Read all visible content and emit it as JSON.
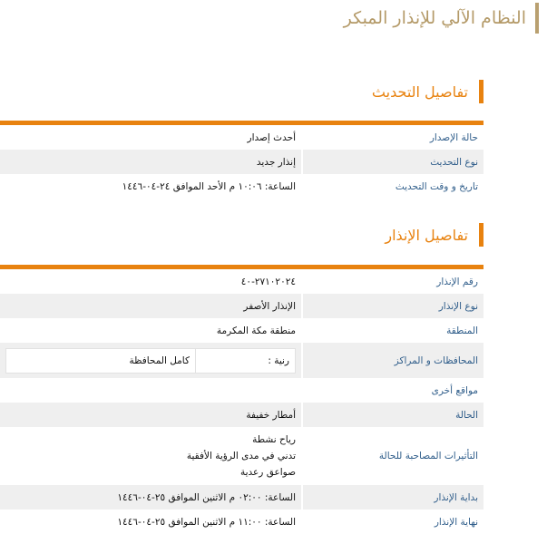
{
  "page_title": "النظام الآلي للإنذار المبكر",
  "update_section": {
    "heading": "تفاصيل التحديث",
    "rows": [
      {
        "label": "حالة الإصدار",
        "value": "أحدث إصدار"
      },
      {
        "label": "نوع التحديث",
        "value": "إنذار جديد"
      },
      {
        "label": "تاريخ و وقت التحديث",
        "value": "الساعة: ١٠:٠٦ م الأحد الموافق ٢٤-٠٤-١٤٤٦"
      }
    ]
  },
  "alert_section": {
    "heading": "تفاصيل الإنذار",
    "alert_number": {
      "label": "رقم الإنذار",
      "value": "٢٧١٠٢٠٢٤-٤٠"
    },
    "alert_type": {
      "label": "نوع الإنذار",
      "value": "الإنذار الأصفر"
    },
    "region": {
      "label": "المنطقة",
      "value": "منطقة مكة المكرمة"
    },
    "governorates": {
      "label": "المحافظات و المراكز",
      "name": "رنية :",
      "coverage": "كامل المحافظة"
    },
    "other_locations": {
      "label": "مواقع أخرى",
      "value": ""
    },
    "condition": {
      "label": "الحالة",
      "value": "أمطار خفيفة"
    },
    "effects": {
      "label": "التأثيرات المصاحبة للحالة",
      "values": [
        "رياح نشطة",
        "تدني في مدى الرؤية الأفقية",
        "صواعق رعدية"
      ]
    },
    "start": {
      "label": "بداية الإنذار",
      "value": "الساعة: ٠٢:٠٠ م الاثنين الموافق ٢٥-٠٤-١٤٤٦"
    },
    "end": {
      "label": "نهاية الإنذار",
      "value": "الساعة: ١١:٠٠ م الاثنين الموافق ٢٥-٠٤-١٤٤٦"
    }
  },
  "colors": {
    "accent": "#e8820f",
    "title": "#b49a68",
    "label": "#2f5d8a",
    "row_alt": "#efefef"
  }
}
